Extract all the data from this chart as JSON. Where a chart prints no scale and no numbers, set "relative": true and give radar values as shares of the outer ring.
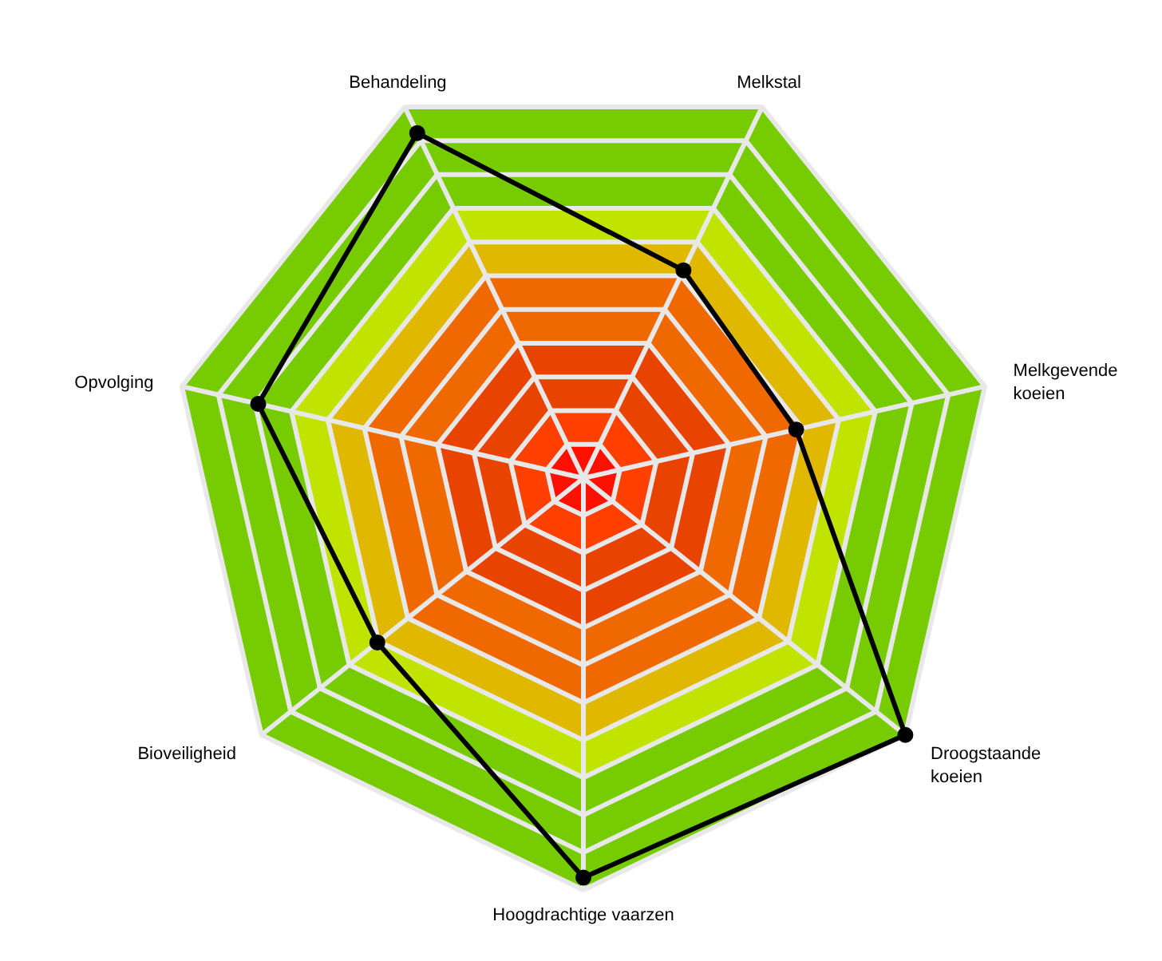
{
  "chart_data": {
    "type": "radar",
    "relative": true,
    "marker": "circle",
    "line_style": "solid",
    "categories": [
      "Melkstal",
      "Melkgevende\nkoeien",
      "Droogstaande\nkoeien",
      "Hoogdrachtige vaarzen",
      "Bioveiligheid",
      "Opvolging",
      "Behandeling"
    ],
    "series": [
      {
        "color": "#000000",
        "values": [
          0.56,
          0.53,
          1.0,
          0.97,
          0.64,
          0.81,
          0.93
        ]
      }
    ]
  }
}
